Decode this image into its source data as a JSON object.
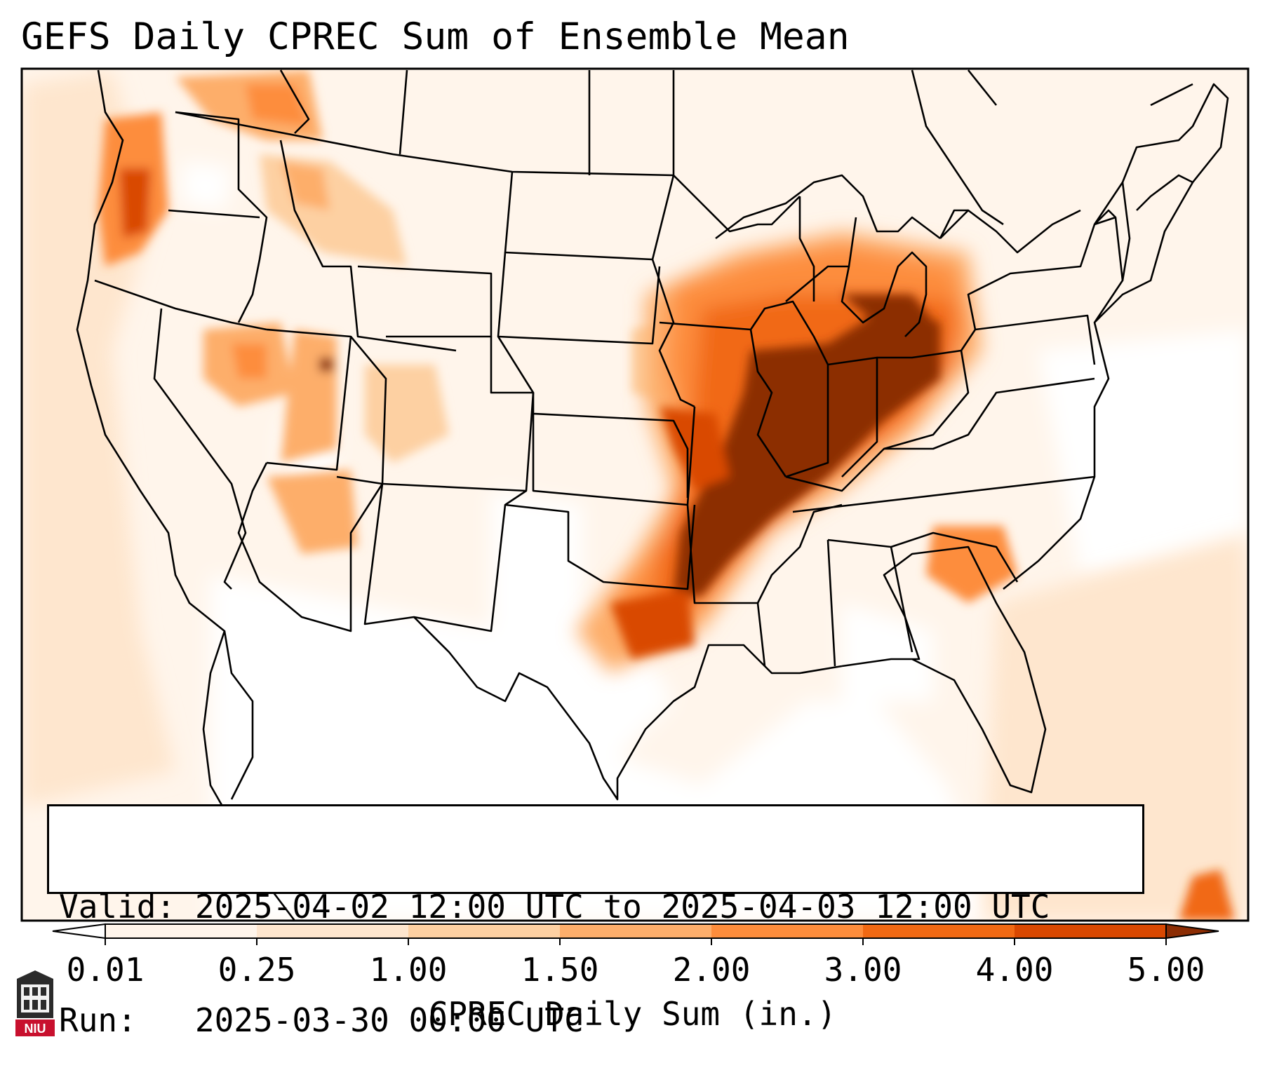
{
  "title": "GEFS Daily CPREC Sum of Ensemble Mean",
  "info": {
    "valid_label": "Valid:",
    "valid_value": "2025-04-02 12:00 UTC to 2025-04-03 12:00 UTC",
    "run_label": "Run:",
    "run_value": "2025-03-30 00:00 UTC"
  },
  "colorbar": {
    "label": "CPREC Daily Sum (in.)",
    "ticks": [
      "0.01",
      "0.25",
      "1.00",
      "1.50",
      "2.00",
      "3.00",
      "4.00",
      "5.00"
    ],
    "colors": [
      "#fff5eb",
      "#fee6ce",
      "#fdd0a2",
      "#fdae6b",
      "#fd8d3c",
      "#f16913",
      "#d94801",
      "#8c2d04"
    ],
    "under_color": "#ffffff",
    "over_color": "#8c2d04"
  },
  "logo": {
    "text": "NIU",
    "color": "#c8102e"
  }
}
